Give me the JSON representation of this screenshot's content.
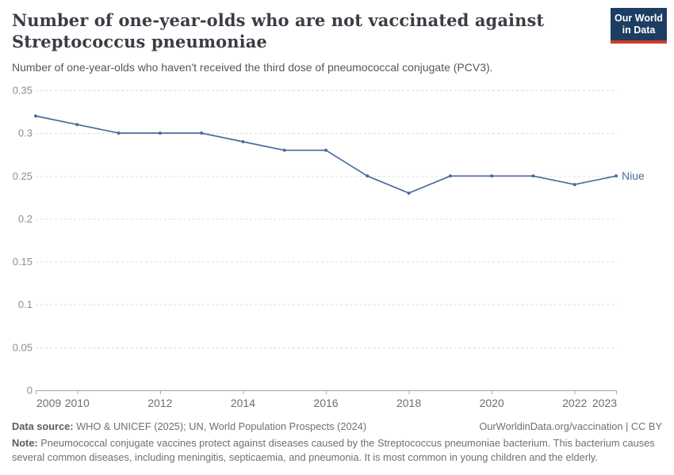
{
  "header": {
    "title": "Number of one-year-olds who are not vaccinated against Streptococcus pneumoniae",
    "subtitle": "Number of one-year-olds who haven't received the third dose of pneumococcal conjugate (PCV3).",
    "logo_line1": "Our World",
    "logo_line2": "in Data"
  },
  "chart_data": {
    "type": "line",
    "title": "Number of one-year-olds who are not vaccinated against Streptococcus pneumoniae",
    "xlabel": "",
    "ylabel": "",
    "xlim": [
      2009,
      2023
    ],
    "ylim": [
      0,
      0.35
    ],
    "grid": "horizontal-dashed",
    "legend_position": "end-of-line-label",
    "x": [
      2009,
      2010,
      2011,
      2012,
      2013,
      2014,
      2015,
      2016,
      2017,
      2018,
      2019,
      2020,
      2021,
      2022,
      2023
    ],
    "series": [
      {
        "name": "Niue",
        "color": "#4c6a9c",
        "values": [
          0.32,
          0.31,
          0.3,
          0.3,
          0.3,
          0.29,
          0.28,
          0.28,
          0.25,
          0.23,
          0.25,
          0.25,
          0.25,
          0.24,
          0.25
        ]
      }
    ],
    "yticks": [
      0,
      0.05,
      0.1,
      0.15,
      0.2,
      0.25,
      0.3,
      0.35
    ],
    "ytick_labels": [
      "0",
      "0.05",
      "0.1",
      "0.15",
      "0.2",
      "0.25",
      "0.3",
      "0.35"
    ],
    "xticks": [
      2009,
      2010,
      2012,
      2014,
      2016,
      2018,
      2020,
      2022,
      2023
    ],
    "xtick_labels": [
      "2009",
      "2010",
      "2012",
      "2014",
      "2016",
      "2018",
      "2020",
      "2022",
      "2023"
    ]
  },
  "colors": {
    "line": "#4c6a9c",
    "gridline": "#dcdcdc",
    "axis_line": "#a5a5a5",
    "tick_mark": "#ababab",
    "ytick_text": "#8e8e8e",
    "xtick_text": "#6d6d6d",
    "logo_bg": "#1d3d63",
    "logo_red": "#cf3b29"
  },
  "footer": {
    "datasource_label": "Data source:",
    "datasource_text": " WHO & UNICEF (2025); UN, World Population Prospects (2024)",
    "link": "OurWorldinData.org/vaccination | CC BY",
    "note_label": "Note:",
    "note_text": " Pneumococcal conjugate vaccines protect against diseases caused by the Streptococcus pneumoniae bacterium. This bacterium causes several common diseases, including meningitis, septicaemia, and pneumonia. It is most common in young children and the elderly."
  }
}
